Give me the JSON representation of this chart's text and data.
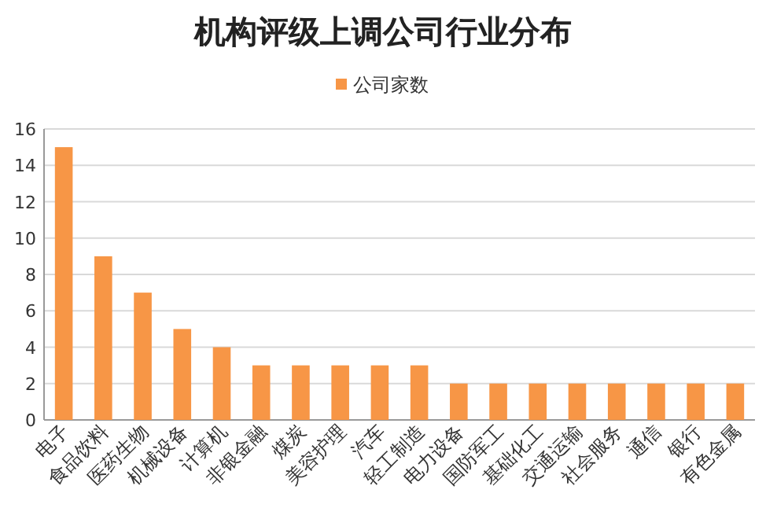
{
  "chart_data": {
    "type": "bar",
    "title": "机构评级上调公司行业分布",
    "categories": [
      "电子",
      "食品饮料",
      "医药生物",
      "机械设备",
      "计算机",
      "非银金融",
      "煤炭",
      "美容护理",
      "汽车",
      "轻工制造",
      "电力设备",
      "国防军工",
      "基础化工",
      "交通运输",
      "社会服务",
      "通信",
      "银行",
      "有色金属"
    ],
    "series": [
      {
        "name": "公司家数",
        "color": "#f79646",
        "values": [
          15,
          9,
          7,
          5,
          4,
          3,
          3,
          3,
          3,
          3,
          2,
          2,
          2,
          2,
          2,
          2,
          2,
          2
        ]
      }
    ],
    "ylim": [
      0,
      16
    ],
    "yticks": [
      0,
      2,
      4,
      6,
      8,
      10,
      12,
      14,
      16
    ],
    "grid": "y",
    "legend": "top"
  }
}
